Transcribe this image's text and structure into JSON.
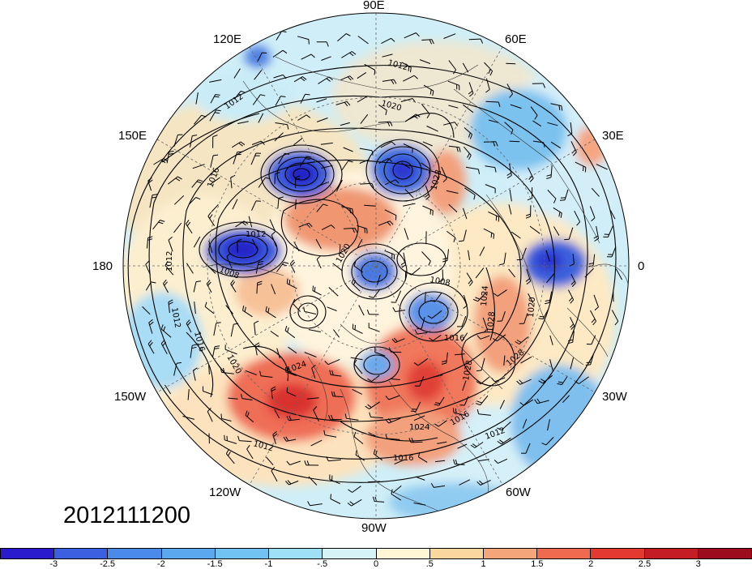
{
  "map": {
    "date_label": "2012111200",
    "projection": "north-polar-stereographic",
    "center_latitude": 90,
    "longitude_labels": [
      "90E",
      "60E",
      "30E",
      "0",
      "30W",
      "60W",
      "90W",
      "120W",
      "150W",
      "180",
      "150E",
      "120E"
    ],
    "isobar_labels": [
      "1012",
      "1016",
      "1020",
      "1024",
      "1028",
      "1008"
    ],
    "colorbar": {
      "ticks": [
        "-3",
        "-2.5",
        "-2",
        "-1.5",
        "-1",
        "-.5",
        "0",
        ".5",
        "1",
        "1.5",
        "2",
        "2.5",
        "3"
      ],
      "colors": [
        "#2b1bcf",
        "#3b5fe0",
        "#4a8bea",
        "#5ba8ef",
        "#71c4f2",
        "#9ee0f5",
        "#d6f3f8",
        "#fff6d6",
        "#fbd7a0",
        "#f5a57a",
        "#ef6a4f",
        "#e23a30",
        "#c41d24",
        "#9c0c1e"
      ]
    }
  }
}
